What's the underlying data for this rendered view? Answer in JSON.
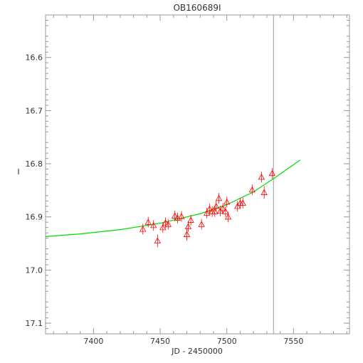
{
  "chart_data": {
    "type": "scatter",
    "title": "OB160689I",
    "xlabel": "JD - 2450000",
    "ylabel": "I",
    "xlim": [
      7364,
      7592
    ],
    "ylim": [
      16.52,
      17.12
    ],
    "y_inverted": true,
    "x_ticks": [
      7400,
      7450,
      7500,
      7550
    ],
    "x_tick_labels": [
      "7400",
      "7450",
      "7500",
      "7550"
    ],
    "y_ticks": [
      16.6,
      16.7,
      16.8,
      16.9,
      17.0,
      17.1
    ],
    "y_tick_labels": [
      "16.6",
      "16.7",
      "16.8",
      "16.9",
      "17.0",
      "17.1"
    ],
    "vertical_line_x": 7535,
    "grid": false,
    "colors": {
      "points": "#ff0000",
      "model": "#00dd00",
      "vline": "#999999",
      "axes": "#999999"
    },
    "model_curve": {
      "x": [
        7364,
        7390,
        7420,
        7450,
        7480,
        7500,
        7520,
        7535,
        7555
      ],
      "y": [
        16.937,
        16.932,
        16.924,
        16.912,
        16.894,
        16.877,
        16.853,
        16.828,
        16.793
      ]
    },
    "points": [
      {
        "x": 7437,
        "y": 16.923,
        "err": 0.01
      },
      {
        "x": 7441,
        "y": 16.91,
        "err": 0.01
      },
      {
        "x": 7445,
        "y": 16.916,
        "err": 0.01
      },
      {
        "x": 7448,
        "y": 16.945,
        "err": 0.012
      },
      {
        "x": 7452,
        "y": 16.92,
        "err": 0.01
      },
      {
        "x": 7454,
        "y": 16.911,
        "err": 0.01
      },
      {
        "x": 7456,
        "y": 16.914,
        "err": 0.01
      },
      {
        "x": 7461,
        "y": 16.898,
        "err": 0.01
      },
      {
        "x": 7463,
        "y": 16.902,
        "err": 0.01
      },
      {
        "x": 7466,
        "y": 16.899,
        "err": 0.01
      },
      {
        "x": 7470,
        "y": 16.933,
        "err": 0.012
      },
      {
        "x": 7471,
        "y": 16.918,
        "err": 0.01
      },
      {
        "x": 7473,
        "y": 16.906,
        "err": 0.01
      },
      {
        "x": 7481,
        "y": 16.914,
        "err": 0.01
      },
      {
        "x": 7485,
        "y": 16.893,
        "err": 0.01
      },
      {
        "x": 7487,
        "y": 16.885,
        "err": 0.01
      },
      {
        "x": 7489,
        "y": 16.89,
        "err": 0.01
      },
      {
        "x": 7491,
        "y": 16.89,
        "err": 0.01
      },
      {
        "x": 7492,
        "y": 16.88,
        "err": 0.01
      },
      {
        "x": 7494,
        "y": 16.865,
        "err": 0.01
      },
      {
        "x": 7495,
        "y": 16.889,
        "err": 0.01
      },
      {
        "x": 7497,
        "y": 16.884,
        "err": 0.01
      },
      {
        "x": 7499,
        "y": 16.89,
        "err": 0.01
      },
      {
        "x": 7500,
        "y": 16.872,
        "err": 0.01
      },
      {
        "x": 7501,
        "y": 16.9,
        "err": 0.01
      },
      {
        "x": 7508,
        "y": 16.88,
        "err": 0.01
      },
      {
        "x": 7510,
        "y": 16.874,
        "err": 0.01
      },
      {
        "x": 7512,
        "y": 16.874,
        "err": 0.01
      },
      {
        "x": 7519,
        "y": 16.849,
        "err": 0.01
      },
      {
        "x": 7526,
        "y": 16.825,
        "err": 0.01
      },
      {
        "x": 7528,
        "y": 16.854,
        "err": 0.012
      },
      {
        "x": 7534,
        "y": 16.818,
        "err": 0.01
      }
    ]
  }
}
